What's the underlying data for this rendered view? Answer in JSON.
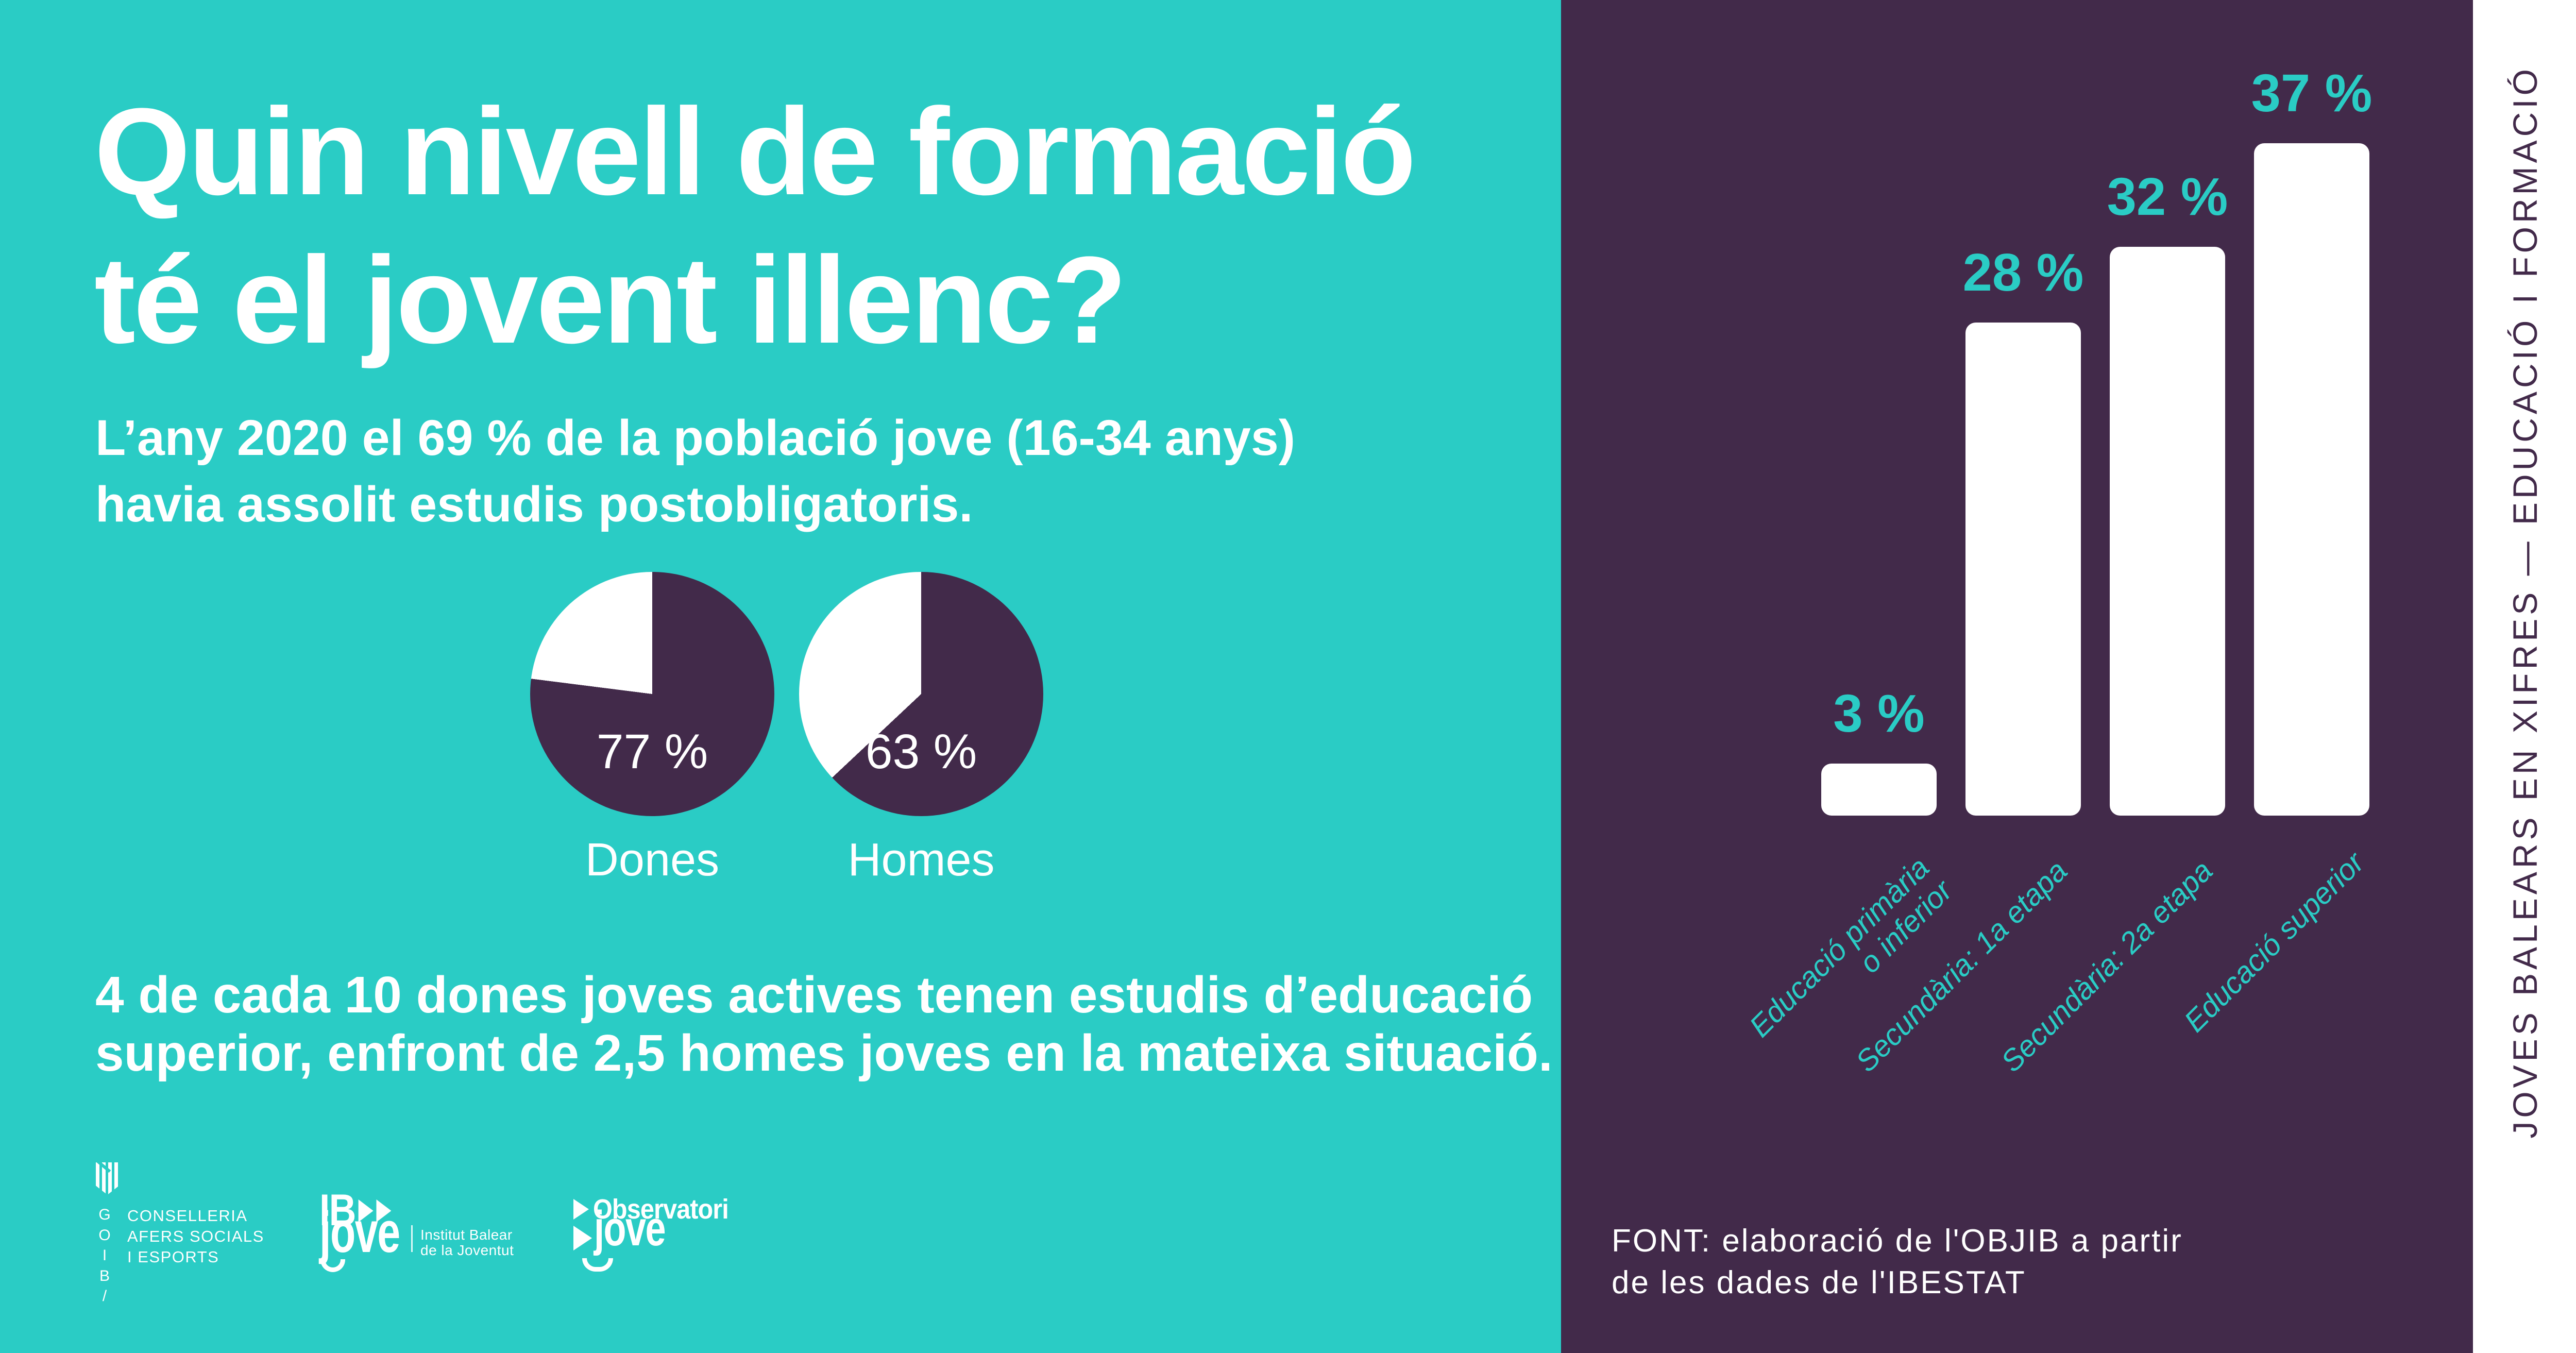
{
  "colors": {
    "teal": "#2accc5",
    "purple": "#422a4a",
    "white": "#ffffff"
  },
  "header": {
    "title_line1": "Quin nivell de formació",
    "title_line2": "té el jovent illenc?",
    "subtitle_line1": "L’any 2020 el 69 % de la població jove (16-34 anys)",
    "subtitle_line2": "havia assolit estudis postobligatoris."
  },
  "statement": {
    "line1": "4 de cada 10 dones joves actives tenen estudis d’educació",
    "line2": "superior, enfront de 2,5 homes joves en la mateixa situació."
  },
  "chart_data": [
    {
      "type": "bar",
      "categories": [
        "Educació primària o inferior",
        "Secundària: 1a etapa",
        "Secundària: 2a etapa",
        "Educació superior"
      ],
      "category_lines": [
        [
          "Educació primària",
          "o inferior"
        ],
        [
          "Secundària: 1a etapa"
        ],
        [
          "Secundària: 2a etapa"
        ],
        [
          "Educació superior"
        ]
      ],
      "values": [
        3,
        28,
        32,
        37
      ],
      "value_labels": [
        "3 %",
        "28 %",
        "32 %",
        "37 %"
      ],
      "bar_color": "#ffffff",
      "label_color": "#2accc5",
      "ylim": [
        0,
        40
      ],
      "grid": "off",
      "legend": "none"
    },
    {
      "type": "pie",
      "label": "Dones",
      "value": 77,
      "value_label": "77 %",
      "values": [
        77,
        23
      ],
      "slice_colors": [
        "#422a4a",
        "#ffffff"
      ]
    },
    {
      "type": "pie",
      "label": "Homes",
      "value": 63,
      "value_label": "63 %",
      "values": [
        63,
        37
      ],
      "slice_colors": [
        "#422a4a",
        "#ffffff"
      ]
    }
  ],
  "logos": {
    "goib": {
      "letters": [
        "G",
        "O",
        "I",
        "B",
        "/"
      ],
      "dept_line1": "CONSELLERIA",
      "dept_line2": "AFERS SOCIALS",
      "dept_line3": "I ESPORTS"
    },
    "ibjove": {
      "ib": "IB",
      "jove": "jove",
      "org_line1": "Institut Balear",
      "org_line2": "de la Joventut"
    },
    "observatori": {
      "line1": "Observatori",
      "line2": "jove"
    }
  },
  "footer": {
    "source_line1": "FONT: elaboració de l'OBJIB a partir",
    "source_line2": "de les dades de l'IBESTAT"
  },
  "strip": {
    "text": "JOVES BALEARS EN XIFRES — EDUCACIÓ I FORMACIÓ"
  }
}
